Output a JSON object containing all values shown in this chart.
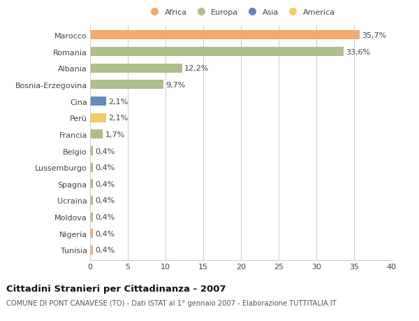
{
  "categories": [
    "Marocco",
    "Romania",
    "Albania",
    "Bosnia-Erzegovina",
    "Cina",
    "Perù",
    "Francia",
    "Belgio",
    "Lussemburgo",
    "Spagna",
    "Ucraina",
    "Moldova",
    "Nigeria",
    "Tunisia"
  ],
  "values": [
    35.7,
    33.6,
    12.2,
    9.7,
    2.1,
    2.1,
    1.7,
    0.4,
    0.4,
    0.4,
    0.4,
    0.4,
    0.4,
    0.4
  ],
  "labels": [
    "35,7%",
    "33,6%",
    "12,2%",
    "9,7%",
    "2,1%",
    "2,1%",
    "1,7%",
    "0,4%",
    "0,4%",
    "0,4%",
    "0,4%",
    "0,4%",
    "0,4%",
    "0,4%"
  ],
  "colors": [
    "#F2A96E",
    "#ADBF8A",
    "#ADBF8A",
    "#ADBF8A",
    "#6688BB",
    "#F5C96A",
    "#ADBF8A",
    "#ADBF8A",
    "#ADBF8A",
    "#ADBF8A",
    "#ADBF8A",
    "#ADBF8A",
    "#F2A96E",
    "#F2A96E"
  ],
  "legend_labels": [
    "Africa",
    "Europa",
    "Asia",
    "America"
  ],
  "legend_colors": [
    "#F2A96E",
    "#ADBF8A",
    "#6688BB",
    "#F5C96A"
  ],
  "title": "Cittadini Stranieri per Cittadinanza - 2007",
  "subtitle": "COMUNE DI PONT CANAVESE (TO) - Dati ISTAT al 1° gennaio 2007 - Elaborazione TUTTITALIA.IT",
  "xlim": [
    0,
    40
  ],
  "xticks": [
    0,
    5,
    10,
    15,
    20,
    25,
    30,
    35,
    40
  ],
  "bg_color": "#FFFFFF",
  "grid_color": "#CCCCCC",
  "bar_height": 0.55,
  "label_fontsize": 8.0,
  "tick_fontsize": 8.0,
  "title_fontsize": 9.5,
  "subtitle_fontsize": 7.2
}
